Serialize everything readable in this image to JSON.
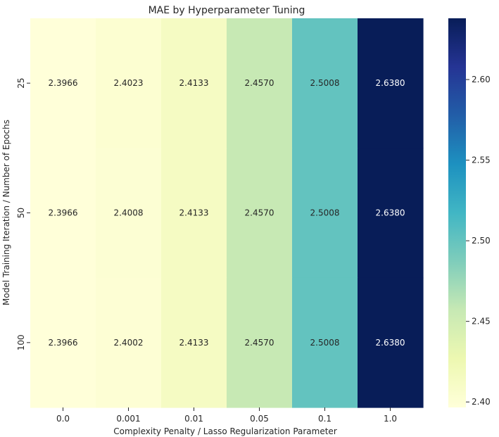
{
  "chart_data": {
    "type": "heatmap",
    "title": "MAE by Hyperparameter Tuning",
    "xlabel": "Complexity Penalty / Lasso Regularization Parameter",
    "ylabel": "Model Training Iteration / Number of Epochs",
    "x_categories": [
      "0.0",
      "0.001",
      "0.01",
      "0.05",
      "0.1",
      "1.0"
    ],
    "y_categories": [
      "25",
      "50",
      "100"
    ],
    "values": [
      [
        2.3966,
        2.4023,
        2.4133,
        2.457,
        2.5008,
        2.638
      ],
      [
        2.3966,
        2.4008,
        2.4133,
        2.457,
        2.5008,
        2.638
      ],
      [
        2.3966,
        2.4002,
        2.4133,
        2.457,
        2.5008,
        2.638
      ]
    ],
    "value_format": "4 decimals",
    "colormap": "YlGnBu",
    "colorbar": {
      "range": [
        2.3966,
        2.638
      ],
      "ticks": [
        "2.40",
        "2.45",
        "2.50",
        "2.55",
        "2.60"
      ],
      "tick_values": [
        2.4,
        2.45,
        2.5,
        2.55,
        2.6
      ]
    },
    "grid": false
  }
}
